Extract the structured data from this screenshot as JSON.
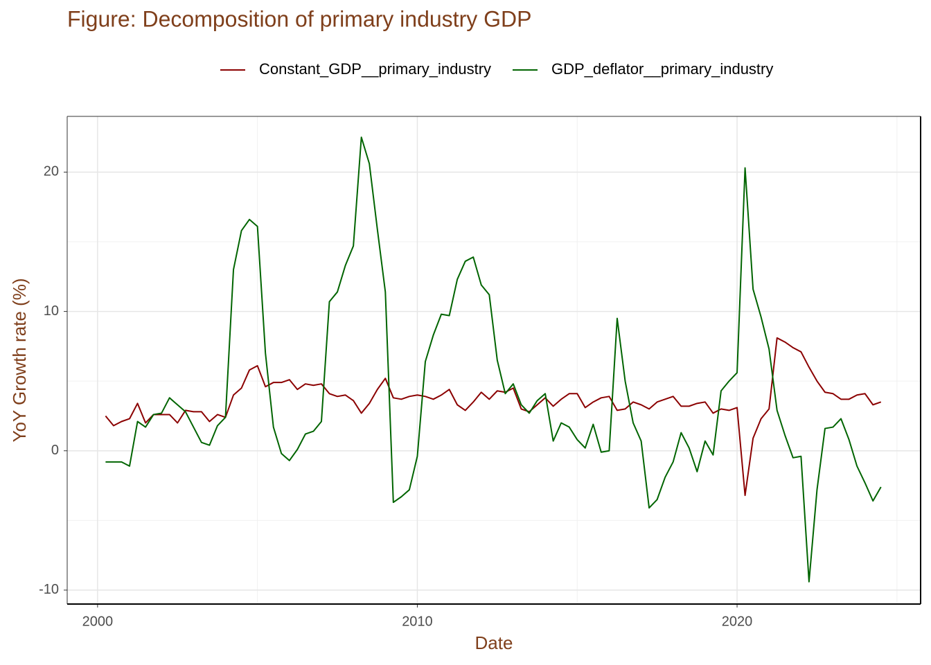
{
  "chart_data": {
    "type": "line",
    "title": "Figure: Decomposition of primary industry GDP",
    "xlabel": "Date",
    "ylabel": "YoY Growth rate (%)",
    "x": [
      2000.25,
      2000.5,
      2000.75,
      2001,
      2001.25,
      2001.5,
      2001.75,
      2002,
      2002.25,
      2002.5,
      2002.75,
      2003,
      2003.25,
      2003.5,
      2003.75,
      2004,
      2004.25,
      2004.5,
      2004.75,
      2005,
      2005.25,
      2005.5,
      2005.75,
      2006,
      2006.25,
      2006.5,
      2006.75,
      2007,
      2007.25,
      2007.5,
      2007.75,
      2008,
      2008.25,
      2008.5,
      2008.75,
      2009,
      2009.25,
      2009.5,
      2009.75,
      2010,
      2010.25,
      2010.5,
      2010.75,
      2011,
      2011.25,
      2011.5,
      2011.75,
      2012,
      2012.25,
      2012.5,
      2012.75,
      2013,
      2013.25,
      2013.5,
      2013.75,
      2014,
      2014.25,
      2014.5,
      2014.75,
      2015,
      2015.25,
      2015.5,
      2015.75,
      2016,
      2016.25,
      2016.5,
      2016.75,
      2017,
      2017.25,
      2017.5,
      2017.75,
      2018,
      2018.25,
      2018.5,
      2018.75,
      2019,
      2019.25,
      2019.5,
      2019.75,
      2020,
      2020.25,
      2020.5,
      2020.75,
      2021,
      2021.25,
      2021.5,
      2021.75,
      2022,
      2022.25,
      2022.5,
      2022.75,
      2023,
      2023.25,
      2023.5,
      2023.75,
      2024,
      2024.25,
      2024.5
    ],
    "series": [
      {
        "name": "Constant_GDP__primary_industry",
        "color": "#8b0000",
        "values": [
          2.5,
          1.8,
          2.1,
          2.3,
          3.4,
          2.0,
          2.6,
          2.6,
          2.6,
          2.0,
          2.9,
          2.8,
          2.8,
          2.1,
          2.6,
          2.4,
          4.0,
          4.5,
          5.8,
          6.1,
          4.6,
          4.9,
          4.9,
          5.1,
          4.4,
          4.8,
          4.7,
          4.8,
          4.1,
          3.9,
          4.0,
          3.6,
          2.7,
          3.4,
          4.4,
          5.2,
          3.8,
          3.7,
          3.9,
          4.0,
          3.9,
          3.7,
          4.0,
          4.4,
          3.3,
          2.9,
          3.5,
          4.2,
          3.7,
          4.3,
          4.2,
          4.5,
          3.0,
          2.8,
          3.3,
          3.8,
          3.2,
          3.7,
          4.1,
          4.1,
          3.1,
          3.5,
          3.8,
          3.9,
          2.9,
          3.0,
          3.5,
          3.3,
          3.0,
          3.5,
          3.7,
          3.9,
          3.2,
          3.2,
          3.4,
          3.5,
          2.7,
          3.0,
          2.9,
          3.1,
          -3.2,
          0.9,
          2.3,
          3.0,
          8.1,
          7.8,
          7.4,
          7.1,
          6.0,
          5.0,
          4.2,
          4.1,
          3.7,
          3.7,
          4.0,
          4.1,
          3.3,
          3.5
        ]
      },
      {
        "name": "GDP_deflator__primary_industry",
        "color": "#006400",
        "values": [
          -0.8,
          -0.8,
          -0.8,
          -1.1,
          2.1,
          1.7,
          2.6,
          2.7,
          3.8,
          3.3,
          2.8,
          1.7,
          0.6,
          0.4,
          1.8,
          2.4,
          13.0,
          15.8,
          16.6,
          16.1,
          7.0,
          1.7,
          -0.2,
          -0.7,
          0.1,
          1.2,
          1.4,
          2.1,
          10.7,
          11.4,
          13.3,
          14.7,
          22.5,
          20.6,
          15.9,
          11.4,
          -3.7,
          -3.3,
          -2.8,
          -0.4,
          6.4,
          8.3,
          9.8,
          9.7,
          12.3,
          13.6,
          13.9,
          11.9,
          11.2,
          6.5,
          4.1,
          4.8,
          3.3,
          2.7,
          3.6,
          4.1,
          0.7,
          2.0,
          1.7,
          0.8,
          0.2,
          1.9,
          -0.1,
          0.0,
          9.5,
          5.0,
          2.0,
          0.7,
          -4.1,
          -3.5,
          -1.9,
          -0.8,
          1.3,
          0.2,
          -1.5,
          0.7,
          -0.3,
          4.3,
          5.0,
          5.6,
          20.3,
          11.6,
          9.6,
          7.3,
          2.9,
          1.1,
          -0.5,
          -0.4,
          -9.4,
          -2.8,
          1.6,
          1.7,
          2.3,
          0.8,
          -1.1,
          -2.3,
          -3.6,
          -2.6
        ]
      }
    ],
    "xlim": [
      1999.05,
      2025.74
    ],
    "ylim": [
      -11,
      24
    ],
    "xticks": [
      2000,
      2010,
      2020
    ],
    "yticks": [
      -10,
      0,
      10,
      20
    ],
    "x_minor_ticks": [
      2005,
      2015,
      2025
    ],
    "y_minor_ticks": [
      -5,
      5,
      15
    ],
    "grid": true,
    "legend": "top"
  }
}
